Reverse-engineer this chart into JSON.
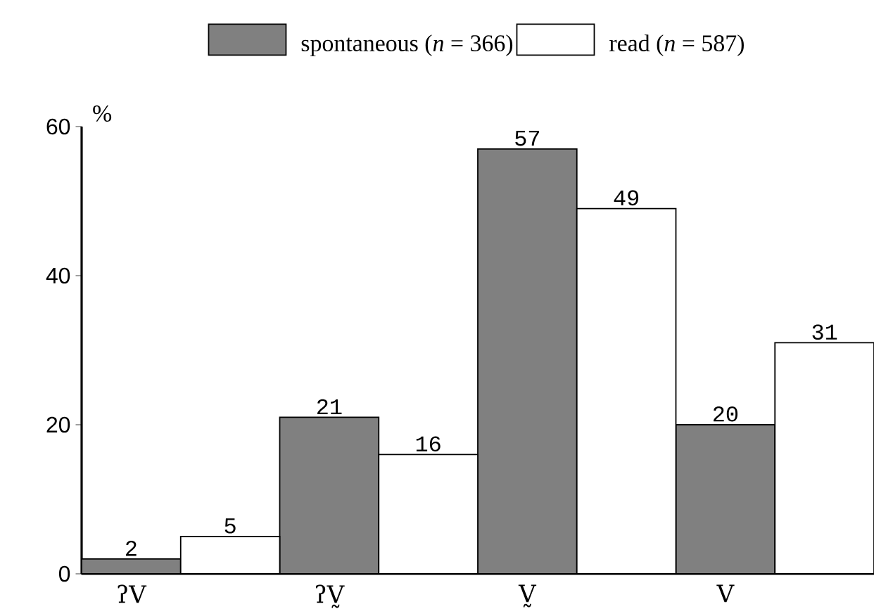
{
  "chart_data": {
    "type": "bar",
    "ylabel": "%",
    "categories": [
      "ʔV",
      "ʔV̰",
      "V̰",
      "V"
    ],
    "series": [
      {
        "name": "spontaneous (*n* = 366)",
        "color": "#808080",
        "values": [
          2,
          21,
          57,
          20
        ]
      },
      {
        "name": "read (*n* = 587)",
        "color": "#ffffff",
        "values": [
          5,
          16,
          49,
          31
        ]
      }
    ],
    "ylim": [
      0,
      60
    ],
    "yticks": [
      0,
      20,
      40,
      60
    ],
    "data_labels": true,
    "legend": "top",
    "grid": false
  }
}
